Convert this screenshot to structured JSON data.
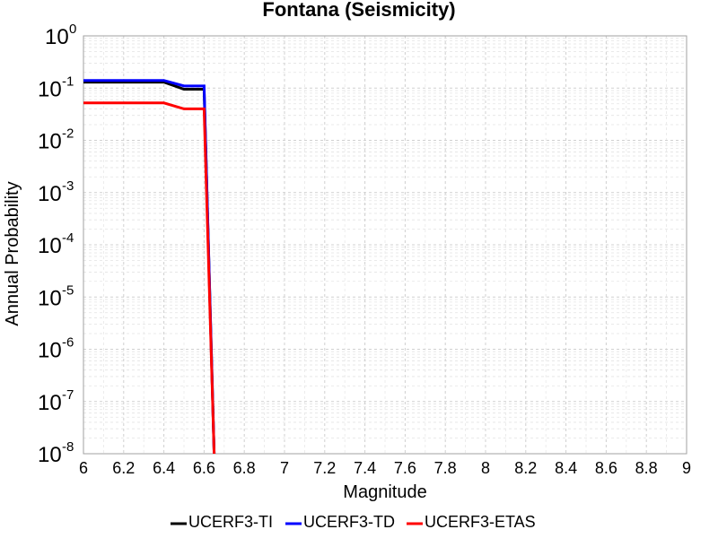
{
  "chart_data": {
    "type": "line",
    "title": "Fontana (Seismicity)",
    "xlabel": "Magnitude",
    "ylabel": "Annual Probability",
    "xlim": [
      6,
      9
    ],
    "ylim": [
      1e-08,
      1
    ],
    "yscale": "log",
    "grid": true,
    "legend_position": "bottom",
    "xticks": [
      "6",
      "6.2",
      "6.4",
      "6.6",
      "6.8",
      "7",
      "7.2",
      "7.4",
      "7.6",
      "7.8",
      "8",
      "8.2",
      "8.4",
      "8.6",
      "8.8",
      "9"
    ],
    "yticks": [
      {
        "base": "10",
        "exp": "0"
      },
      {
        "base": "10",
        "exp": "-1"
      },
      {
        "base": "10",
        "exp": "-2"
      },
      {
        "base": "10",
        "exp": "-3"
      },
      {
        "base": "10",
        "exp": "-4"
      },
      {
        "base": "10",
        "exp": "-5"
      },
      {
        "base": "10",
        "exp": "-6"
      },
      {
        "base": "10",
        "exp": "-7"
      },
      {
        "base": "10",
        "exp": "-8"
      }
    ],
    "series": [
      {
        "name": "UCERF3-TI",
        "color": "#000000",
        "x": [
          6.0,
          6.4,
          6.5,
          6.6,
          6.65
        ],
        "y": [
          0.13,
          0.13,
          0.095,
          0.095,
          1e-08
        ]
      },
      {
        "name": "UCERF3-TD",
        "color": "#0000ff",
        "x": [
          6.0,
          6.4,
          6.5,
          6.6,
          6.65
        ],
        "y": [
          0.14,
          0.14,
          0.11,
          0.11,
          1e-08
        ]
      },
      {
        "name": "UCERF3-ETAS",
        "color": "#ff0000",
        "x": [
          6.0,
          6.4,
          6.5,
          6.6,
          6.65
        ],
        "y": [
          0.052,
          0.052,
          0.04,
          0.04,
          1e-08
        ]
      }
    ]
  }
}
